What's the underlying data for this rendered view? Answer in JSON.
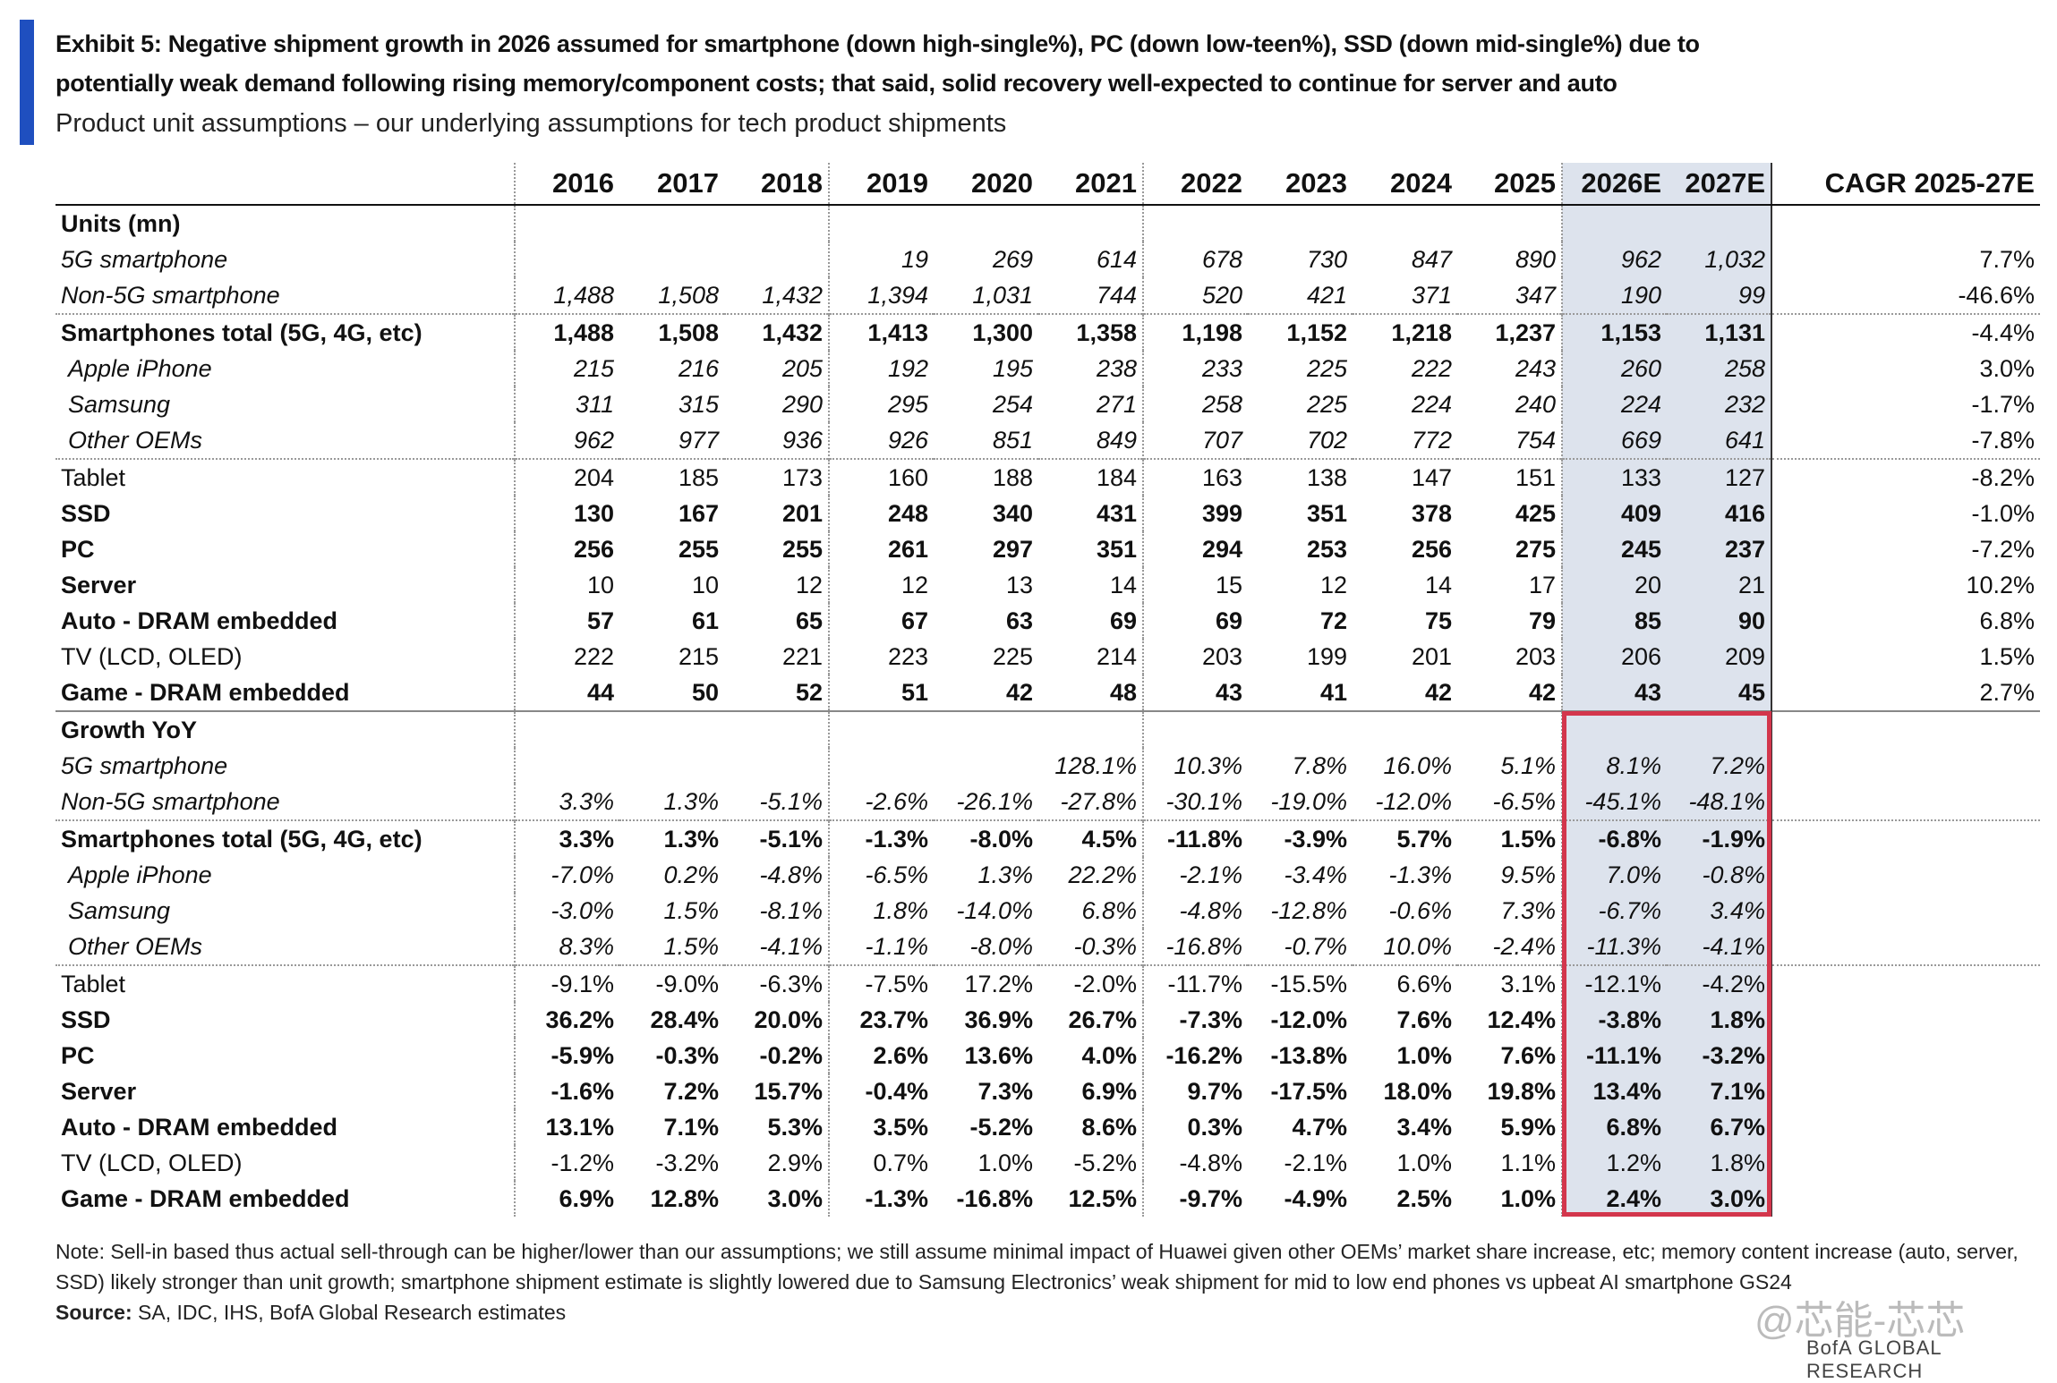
{
  "header": {
    "title_line1": "Exhibit 5: Negative shipment growth in 2026 assumed for smartphone (down high-single%), PC (down low-teen%), SSD (down mid-single%) due to",
    "title_line2": "potentially weak demand following rising memory/component costs; that said, solid recovery well-expected to continue for server and auto",
    "subtitle": "Product unit assumptions – our underlying assumptions for tech product shipments"
  },
  "table": {
    "columns": [
      "2016",
      "2017",
      "2018",
      "2019",
      "2020",
      "2021",
      "2022",
      "2023",
      "2024",
      "2025",
      "2026E",
      "2027E",
      "CAGR 2025-27E"
    ],
    "sections": [
      {
        "title": "Units (mn)",
        "rows": [
          {
            "label": "5G smartphone",
            "label_style": "italic",
            "value_style": "italic",
            "indent": false,
            "values": [
              null,
              null,
              null,
              "19",
              "269",
              "614",
              "678",
              "730",
              "847",
              "890",
              "962",
              "1,032"
            ],
            "cagr": "7.7%"
          },
          {
            "label": "Non-5G smartphone",
            "label_style": "italic",
            "value_style": "italic",
            "indent": false,
            "values": [
              "1,488",
              "1,508",
              "1,432",
              "1,394",
              "1,031",
              "744",
              "520",
              "421",
              "371",
              "347",
              "190",
              "99"
            ],
            "cagr": "-46.6%"
          },
          {
            "label": "Smartphones total (5G, 4G, etc)",
            "label_style": "bold",
            "value_style": "bold",
            "indent": false,
            "values": [
              "1,488",
              "1,508",
              "1,432",
              "1,413",
              "1,300",
              "1,358",
              "1,198",
              "1,152",
              "1,218",
              "1,237",
              "1,153",
              "1,131"
            ],
            "cagr": "-4.4%"
          },
          {
            "label": "Apple iPhone",
            "label_style": "italic",
            "value_style": "italic",
            "indent": true,
            "values": [
              "215",
              "216",
              "205",
              "192",
              "195",
              "238",
              "233",
              "225",
              "222",
              "243",
              "260",
              "258"
            ],
            "cagr": "3.0%"
          },
          {
            "label": "Samsung",
            "label_style": "italic",
            "value_style": "italic",
            "indent": true,
            "values": [
              "311",
              "315",
              "290",
              "295",
              "254",
              "271",
              "258",
              "225",
              "224",
              "240",
              "224",
              "232"
            ],
            "cagr": "-1.7%"
          },
          {
            "label": "Other OEMs",
            "label_style": "italic",
            "value_style": "italic",
            "indent": true,
            "values": [
              "962",
              "977",
              "936",
              "926",
              "851",
              "849",
              "707",
              "702",
              "772",
              "754",
              "669",
              "641"
            ],
            "cagr": "-7.8%"
          },
          {
            "label": "Tablet",
            "label_style": "normal",
            "value_style": "normal",
            "indent": false,
            "values": [
              "204",
              "185",
              "173",
              "160",
              "188",
              "184",
              "163",
              "138",
              "147",
              "151",
              "133",
              "127"
            ],
            "cagr": "-8.2%"
          },
          {
            "label": "SSD",
            "label_style": "bold",
            "value_style": "bold",
            "indent": false,
            "values": [
              "130",
              "167",
              "201",
              "248",
              "340",
              "431",
              "399",
              "351",
              "378",
              "425",
              "409",
              "416"
            ],
            "cagr": "-1.0%"
          },
          {
            "label": "PC",
            "label_style": "bold",
            "value_style": "bold",
            "indent": false,
            "values": [
              "256",
              "255",
              "255",
              "261",
              "297",
              "351",
              "294",
              "253",
              "256",
              "275",
              "245",
              "237"
            ],
            "cagr": "-7.2%"
          },
          {
            "label": "Server",
            "label_style": "bold",
            "value_style": "normal",
            "indent": false,
            "values": [
              "10",
              "10",
              "12",
              "12",
              "13",
              "14",
              "15",
              "12",
              "14",
              "17",
              "20",
              "21"
            ],
            "cagr": "10.2%"
          },
          {
            "label": "Auto - DRAM embedded",
            "label_style": "bold",
            "value_style": "bold",
            "indent": false,
            "values": [
              "57",
              "61",
              "65",
              "67",
              "63",
              "69",
              "69",
              "72",
              "75",
              "79",
              "85",
              "90"
            ],
            "cagr": "6.8%"
          },
          {
            "label": "TV (LCD, OLED)",
            "label_style": "normal",
            "value_style": "normal",
            "indent": false,
            "values": [
              "222",
              "215",
              "221",
              "223",
              "225",
              "214",
              "203",
              "199",
              "201",
              "203",
              "206",
              "209"
            ],
            "cagr": "1.5%"
          },
          {
            "label": "Game - DRAM embedded",
            "label_style": "bold",
            "value_style": "bold",
            "indent": false,
            "values": [
              "44",
              "50",
              "52",
              "51",
              "42",
              "48",
              "43",
              "41",
              "42",
              "42",
              "43",
              "45"
            ],
            "cagr": "2.7%"
          }
        ]
      },
      {
        "title": "Growth YoY",
        "rows": [
          {
            "label": "5G smartphone",
            "label_style": "italic",
            "value_style": "italic",
            "indent": false,
            "values": [
              null,
              null,
              null,
              null,
              null,
              "128.1%",
              "10.3%",
              "7.8%",
              "16.0%",
              "5.1%",
              "8.1%",
              "7.2%"
            ]
          },
          {
            "label": "Non-5G smartphone",
            "label_style": "italic",
            "value_style": "italic",
            "indent": false,
            "values": [
              "3.3%",
              "1.3%",
              "-5.1%",
              "-2.6%",
              "-26.1%",
              "-27.8%",
              "-30.1%",
              "-19.0%",
              "-12.0%",
              "-6.5%",
              "-45.1%",
              "-48.1%"
            ]
          },
          {
            "label": "Smartphones total (5G, 4G, etc)",
            "label_style": "bold",
            "value_style": "bold",
            "indent": false,
            "values": [
              "3.3%",
              "1.3%",
              "-5.1%",
              "-1.3%",
              "-8.0%",
              "4.5%",
              "-11.8%",
              "-3.9%",
              "5.7%",
              "1.5%",
              "-6.8%",
              "-1.9%"
            ]
          },
          {
            "label": "Apple iPhone",
            "label_style": "italic",
            "value_style": "italic",
            "indent": true,
            "values": [
              "-7.0%",
              "0.2%",
              "-4.8%",
              "-6.5%",
              "1.3%",
              "22.2%",
              "-2.1%",
              "-3.4%",
              "-1.3%",
              "9.5%",
              "7.0%",
              "-0.8%"
            ]
          },
          {
            "label": "Samsung",
            "label_style": "italic",
            "value_style": "italic",
            "indent": true,
            "values": [
              "-3.0%",
              "1.5%",
              "-8.1%",
              "1.8%",
              "-14.0%",
              "6.8%",
              "-4.8%",
              "-12.8%",
              "-0.6%",
              "7.3%",
              "-6.7%",
              "3.4%"
            ]
          },
          {
            "label": "Other OEMs",
            "label_style": "italic",
            "value_style": "italic",
            "indent": true,
            "values": [
              "8.3%",
              "1.5%",
              "-4.1%",
              "-1.1%",
              "-8.0%",
              "-0.3%",
              "-16.8%",
              "-0.7%",
              "10.0%",
              "-2.4%",
              "-11.3%",
              "-4.1%"
            ]
          },
          {
            "label": "Tablet",
            "label_style": "normal",
            "value_style": "normal",
            "indent": false,
            "values": [
              "-9.1%",
              "-9.0%",
              "-6.3%",
              "-7.5%",
              "17.2%",
              "-2.0%",
              "-11.7%",
              "-15.5%",
              "6.6%",
              "3.1%",
              "-12.1%",
              "-4.2%"
            ]
          },
          {
            "label": "SSD",
            "label_style": "bold",
            "value_style": "bold",
            "indent": false,
            "values": [
              "36.2%",
              "28.4%",
              "20.0%",
              "23.7%",
              "36.9%",
              "26.7%",
              "-7.3%",
              "-12.0%",
              "7.6%",
              "12.4%",
              "-3.8%",
              "1.8%"
            ]
          },
          {
            "label": "PC",
            "label_style": "bold",
            "value_style": "bold",
            "indent": false,
            "values": [
              "-5.9%",
              "-0.3%",
              "-0.2%",
              "2.6%",
              "13.6%",
              "4.0%",
              "-16.2%",
              "-13.8%",
              "1.0%",
              "7.6%",
              "-11.1%",
              "-3.2%"
            ]
          },
          {
            "label": "Server",
            "label_style": "bold",
            "value_style": "bold",
            "indent": false,
            "values": [
              "-1.6%",
              "7.2%",
              "15.7%",
              "-0.4%",
              "7.3%",
              "6.9%",
              "9.7%",
              "-17.5%",
              "18.0%",
              "19.8%",
              "13.4%",
              "7.1%"
            ]
          },
          {
            "label": "Auto - DRAM embedded",
            "label_style": "bold",
            "value_style": "bold",
            "indent": false,
            "values": [
              "13.1%",
              "7.1%",
              "5.3%",
              "3.5%",
              "-5.2%",
              "8.6%",
              "0.3%",
              "4.7%",
              "3.4%",
              "5.9%",
              "6.8%",
              "6.7%"
            ]
          },
          {
            "label": "TV (LCD, OLED)",
            "label_style": "normal",
            "value_style": "normal",
            "indent": false,
            "values": [
              "-1.2%",
              "-3.2%",
              "2.9%",
              "0.7%",
              "1.0%",
              "-5.2%",
              "-4.8%",
              "-2.1%",
              "1.0%",
              "1.1%",
              "1.2%",
              "1.8%"
            ]
          },
          {
            "label": "Game - DRAM embedded",
            "label_style": "bold",
            "value_style": "bold",
            "indent": false,
            "values": [
              "6.9%",
              "12.8%",
              "3.0%",
              "-1.3%",
              "-16.8%",
              "12.5%",
              "-9.7%",
              "-4.9%",
              "2.5%",
              "1.0%",
              "2.4%",
              "3.0%"
            ]
          }
        ]
      }
    ]
  },
  "footer": {
    "note": "Note: Sell-in based thus actual sell-through can be higher/lower than our assumptions; we still assume minimal impact of Huawei given other OEMs’ market share increase, etc; memory content increase (auto, server, SSD) likely stronger than unit growth; smartphone shipment estimate is slightly lowered due to Samsung Electronics’ weak shipment for mid to low end phones vs upbeat AI smartphone GS24",
    "source_label": "Source:",
    "source": "SA, IDC, IHS, BofA Global Research estimates",
    "watermark": "@芯能-芯芯",
    "brand": "BofA GLOBAL RESEARCH"
  }
}
